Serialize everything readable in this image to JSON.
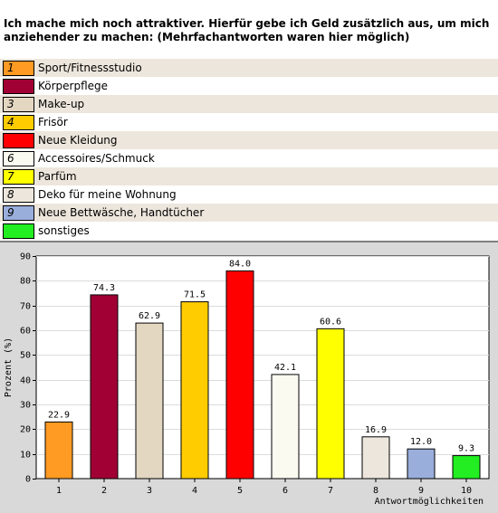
{
  "title": "Ich mache mich noch attraktiver. Hierfür gebe ich Geld zusätzlich aus, um mich anziehender zu machen: (Mehrfachantworten waren hier möglich)",
  "legend": [
    {
      "num": "1",
      "label": "Sport/Fitnessstudio",
      "color": "#ff9a22"
    },
    {
      "num": "2",
      "label": "Körperpflege",
      "color": "#a10035"
    },
    {
      "num": "3",
      "label": "Make-up",
      "color": "#e4d7c2"
    },
    {
      "num": "4",
      "label": "Frisör",
      "color": "#ffcc00"
    },
    {
      "num": "5",
      "label": "Neue Kleidung",
      "color": "#ff0000"
    },
    {
      "num": "6",
      "label": "Accessoires/Schmuck",
      "color": "#fbfaf1"
    },
    {
      "num": "7",
      "label": "Parfüm",
      "color": "#ffff00"
    },
    {
      "num": "8",
      "label": "Deko für meine Wohnung",
      "color": "#ede6dc"
    },
    {
      "num": "9",
      "label": "Neue Bettwäsche, Handtücher",
      "color": "#9aaedc"
    },
    {
      "num": "10",
      "label": "sonstiges",
      "color": "#22ee22"
    }
  ],
  "chart_data": {
    "type": "bar",
    "categories": [
      "1",
      "2",
      "3",
      "4",
      "5",
      "6",
      "7",
      "8",
      "9",
      "10"
    ],
    "values": [
      22.9,
      74.3,
      62.9,
      71.5,
      84.0,
      42.1,
      60.6,
      16.9,
      12.0,
      9.3
    ],
    "value_labels": [
      "22.9",
      "74.3",
      "62.9",
      "71.5",
      "84.0",
      "42.1",
      "60.6",
      "16.9",
      "12.0",
      "9.3"
    ],
    "colors": [
      "#ff9a22",
      "#a10035",
      "#e4d7c2",
      "#ffcc00",
      "#ff0000",
      "#fbfaf1",
      "#ffff00",
      "#ede6dc",
      "#9aaedc",
      "#22ee22"
    ],
    "ylabel": "Prozent (%)",
    "xlabel": "Antwortmöglichkeiten",
    "ylim": [
      0,
      90
    ],
    "yticks": [
      0,
      10,
      20,
      30,
      40,
      50,
      60,
      70,
      80,
      90
    ],
    "grid": true,
    "plot_background": "#ffffff",
    "panel_background": "#d9d9d9"
  }
}
